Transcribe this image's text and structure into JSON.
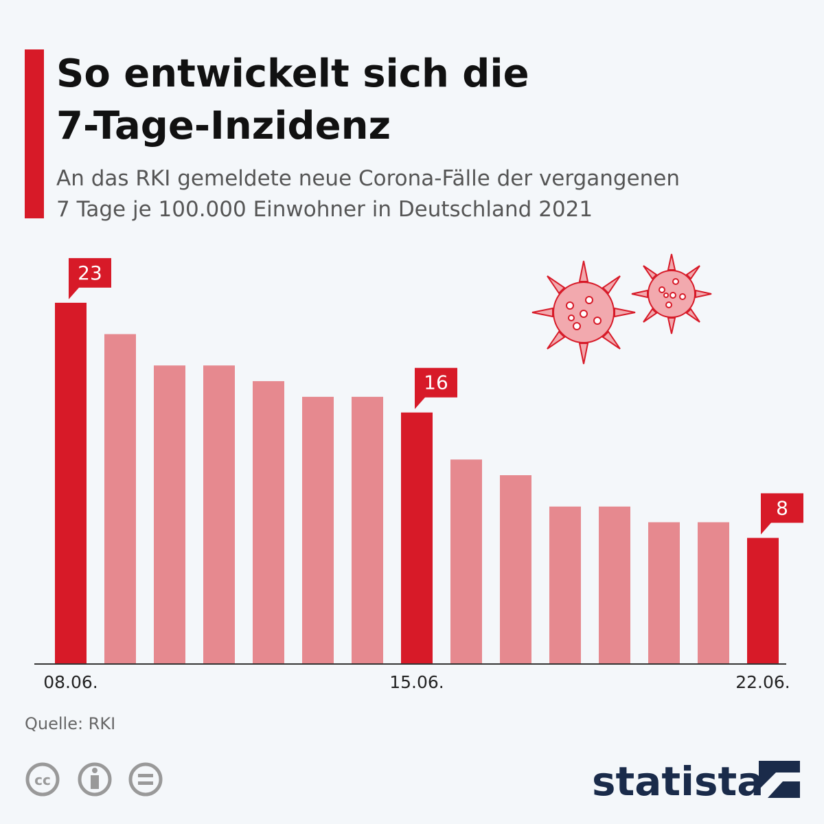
{
  "chart_data": {
    "type": "bar",
    "title": [
      "So entwickelt sich die",
      "7-Tage-Inzidenz"
    ],
    "subtitle": [
      "An das RKI gemeldete neue Corona-Fälle der vergangenen",
      "7 Tage je 100.000 Einwohner in Deutschland 2021"
    ],
    "categories": [
      "08.06.",
      null,
      null,
      null,
      null,
      null,
      null,
      "15.06.",
      null,
      null,
      null,
      null,
      null,
      null,
      "22.06."
    ],
    "values": [
      23,
      21,
      19,
      19,
      18,
      17,
      17,
      16,
      13,
      12,
      10,
      10,
      9,
      9,
      8
    ],
    "value_labels": [
      "23",
      null,
      null,
      null,
      null,
      null,
      null,
      "16",
      null,
      null,
      null,
      null,
      null,
      null,
      "8"
    ],
    "colors": [
      "#d71a28",
      "#e6898f",
      "#e6898f",
      "#e6898f",
      "#e6898f",
      "#e6898f",
      "#e6898f",
      "#d71a28",
      "#e6898f",
      "#e6898f",
      "#e6898f",
      "#e6898f",
      "#e6898f",
      "#e6898f",
      "#d71a28"
    ],
    "source": "Quelle: RKI",
    "brand": "statista"
  }
}
